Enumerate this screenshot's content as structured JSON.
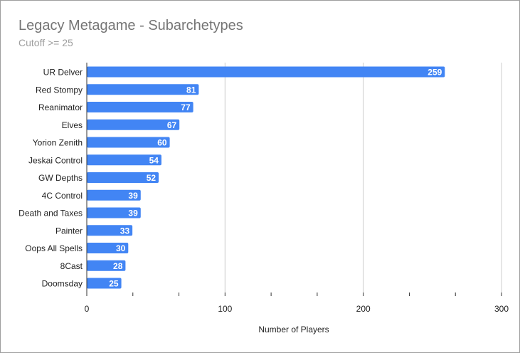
{
  "chart_data": {
    "type": "bar",
    "orientation": "horizontal",
    "title": "Legacy Metagame - Subarchetypes",
    "subtitle": "Cutoff >= 25",
    "xlabel": "Number of Players",
    "ylabel": "",
    "categories": [
      "UR Delver",
      "Red Stompy",
      "Reanimator",
      "Elves",
      "Yorion Zenith",
      "Jeskai Control",
      "GW Depths",
      "4C Control",
      "Death and Taxes",
      "Painter",
      "Oops All Spells",
      "8Cast",
      "Doomsday"
    ],
    "values": [
      259,
      81,
      77,
      67,
      60,
      54,
      52,
      39,
      39,
      33,
      30,
      28,
      25
    ],
    "xlim": [
      0,
      300
    ],
    "xticks": [
      0,
      100,
      200,
      300
    ],
    "grid": true,
    "legend": "none",
    "bar_color": "#4285f4",
    "data_labels": true
  }
}
